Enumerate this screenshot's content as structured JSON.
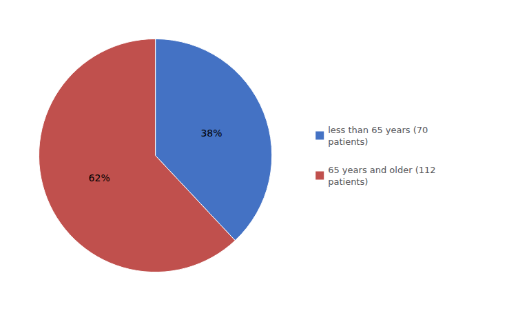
{
  "chart_data": {
    "type": "pie",
    "categories": [
      "less than 65 years (70\npatients)",
      "65 years and older (112\npatients)"
    ],
    "values": [
      38,
      62
    ],
    "value_labels": [
      "38%",
      "62%"
    ],
    "colors": [
      "#4472C4",
      "#C0504D"
    ],
    "data_labels": true,
    "legend": "right"
  }
}
